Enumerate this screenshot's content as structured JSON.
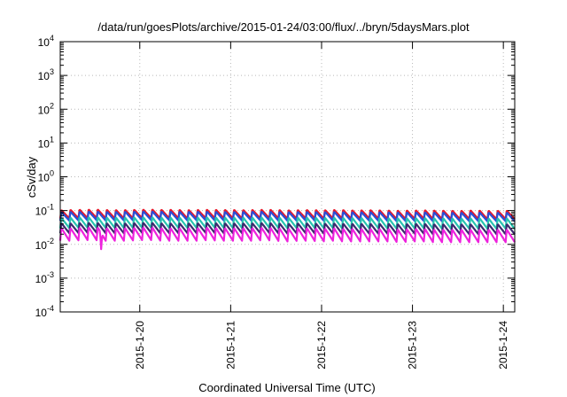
{
  "chart_data": {
    "type": "line",
    "title": "/data/run/goesPlots/archive/2015-01-24/03:00/flux/../bryn/5daysMars.plot",
    "xlabel": "Coordinated Universal Time (UTC)",
    "ylabel": "cSv/day",
    "xlim": [
      "2015-01-19T03:00",
      "2015-01-24T03:00"
    ],
    "x_ticks": [
      "2015-1-20",
      "2015-1-21",
      "2015-1-22",
      "2015-1-23",
      "2015-1-24"
    ],
    "y_scale": "log",
    "ylim": [
      0.0001,
      10000
    ],
    "y_ticks": [
      {
        "base": "10",
        "exp": "-4"
      },
      {
        "base": "10",
        "exp": "-3"
      },
      {
        "base": "10",
        "exp": "-2"
      },
      {
        "base": "10",
        "exp": "-1"
      },
      {
        "base": "10",
        "exp": "0"
      },
      {
        "base": "10",
        "exp": "1"
      },
      {
        "base": "10",
        "exp": "2"
      },
      {
        "base": "10",
        "exp": "3"
      },
      {
        "base": "10",
        "exp": "4"
      }
    ],
    "grid": true,
    "period_hours": 2.4,
    "sample_hours": [
      0,
      3,
      6,
      9,
      12,
      15,
      18,
      21,
      24,
      27,
      30,
      33,
      36,
      39,
      42,
      45,
      48,
      51,
      54,
      57,
      60,
      63,
      66,
      69,
      72,
      75,
      78,
      81,
      84,
      87,
      90,
      93,
      96,
      99,
      102,
      105,
      108,
      111,
      114,
      117,
      120
    ],
    "series": [
      {
        "color": "#e8182a",
        "peak": 0.105,
        "trough": 0.058,
        "values": [
          0.078,
          0.08,
          0.081,
          0.082,
          0.08,
          0.079,
          0.08,
          0.081,
          0.082,
          0.08,
          0.081,
          0.079,
          0.08,
          0.081,
          0.08,
          0.08,
          0.079,
          0.08,
          0.081,
          0.08,
          0.078,
          0.079,
          0.08,
          0.078,
          0.08,
          0.079,
          0.077,
          0.079,
          0.078,
          0.077,
          0.076,
          0.077,
          0.078,
          0.077,
          0.076,
          0.075,
          0.077,
          0.076,
          0.075,
          0.076,
          0.075
        ]
      },
      {
        "color": "#2a4fd6",
        "peak": 0.092,
        "trough": 0.05,
        "values": [
          0.068,
          0.069,
          0.07,
          0.071,
          0.069,
          0.069,
          0.07,
          0.071,
          0.071,
          0.07,
          0.07,
          0.069,
          0.07,
          0.07,
          0.069,
          0.069,
          0.069,
          0.07,
          0.07,
          0.069,
          0.068,
          0.069,
          0.069,
          0.068,
          0.069,
          0.068,
          0.067,
          0.068,
          0.068,
          0.067,
          0.066,
          0.067,
          0.067,
          0.066,
          0.066,
          0.065,
          0.066,
          0.066,
          0.065,
          0.066,
          0.065
        ]
      },
      {
        "color": "#27c4b0",
        "peak": 0.062,
        "trough": 0.03,
        "values": [
          0.044,
          0.045,
          0.046,
          0.046,
          0.045,
          0.045,
          0.045,
          0.046,
          0.046,
          0.045,
          0.045,
          0.045,
          0.045,
          0.046,
          0.045,
          0.045,
          0.045,
          0.045,
          0.046,
          0.045,
          0.044,
          0.045,
          0.045,
          0.044,
          0.045,
          0.044,
          0.044,
          0.044,
          0.044,
          0.043,
          0.043,
          0.043,
          0.044,
          0.043,
          0.043,
          0.042,
          0.043,
          0.043,
          0.042,
          0.043,
          0.042
        ]
      },
      {
        "color": "#3a2a6e",
        "peak": 0.042,
        "trough": 0.021,
        "values": [
          0.031,
          0.031,
          0.032,
          0.032,
          0.031,
          0.031,
          0.031,
          0.032,
          0.032,
          0.031,
          0.031,
          0.031,
          0.031,
          0.032,
          0.031,
          0.031,
          0.031,
          0.031,
          0.032,
          0.031,
          0.03,
          0.031,
          0.031,
          0.03,
          0.031,
          0.03,
          0.03,
          0.03,
          0.03,
          0.03,
          0.029,
          0.03,
          0.03,
          0.029,
          0.029,
          0.029,
          0.029,
          0.029,
          0.029,
          0.029,
          0.029
        ]
      },
      {
        "color": "#ee22dd",
        "peak": 0.03,
        "trough": 0.0125,
        "values": [
          0.021,
          0.021,
          0.022,
          0.022,
          0.021,
          0.021,
          0.021,
          0.022,
          0.022,
          0.021,
          0.021,
          0.021,
          0.021,
          0.022,
          0.021,
          0.021,
          0.021,
          0.021,
          0.022,
          0.021,
          0.02,
          0.021,
          0.021,
          0.02,
          0.021,
          0.02,
          0.02,
          0.02,
          0.02,
          0.02,
          0.019,
          0.02,
          0.02,
          0.019,
          0.019,
          0.019,
          0.019,
          0.019,
          0.019,
          0.019,
          0.019
        ]
      }
    ],
    "anomaly": {
      "hour": 10.8,
      "min_value": 0.0072,
      "series_color": "#ee22dd"
    }
  }
}
